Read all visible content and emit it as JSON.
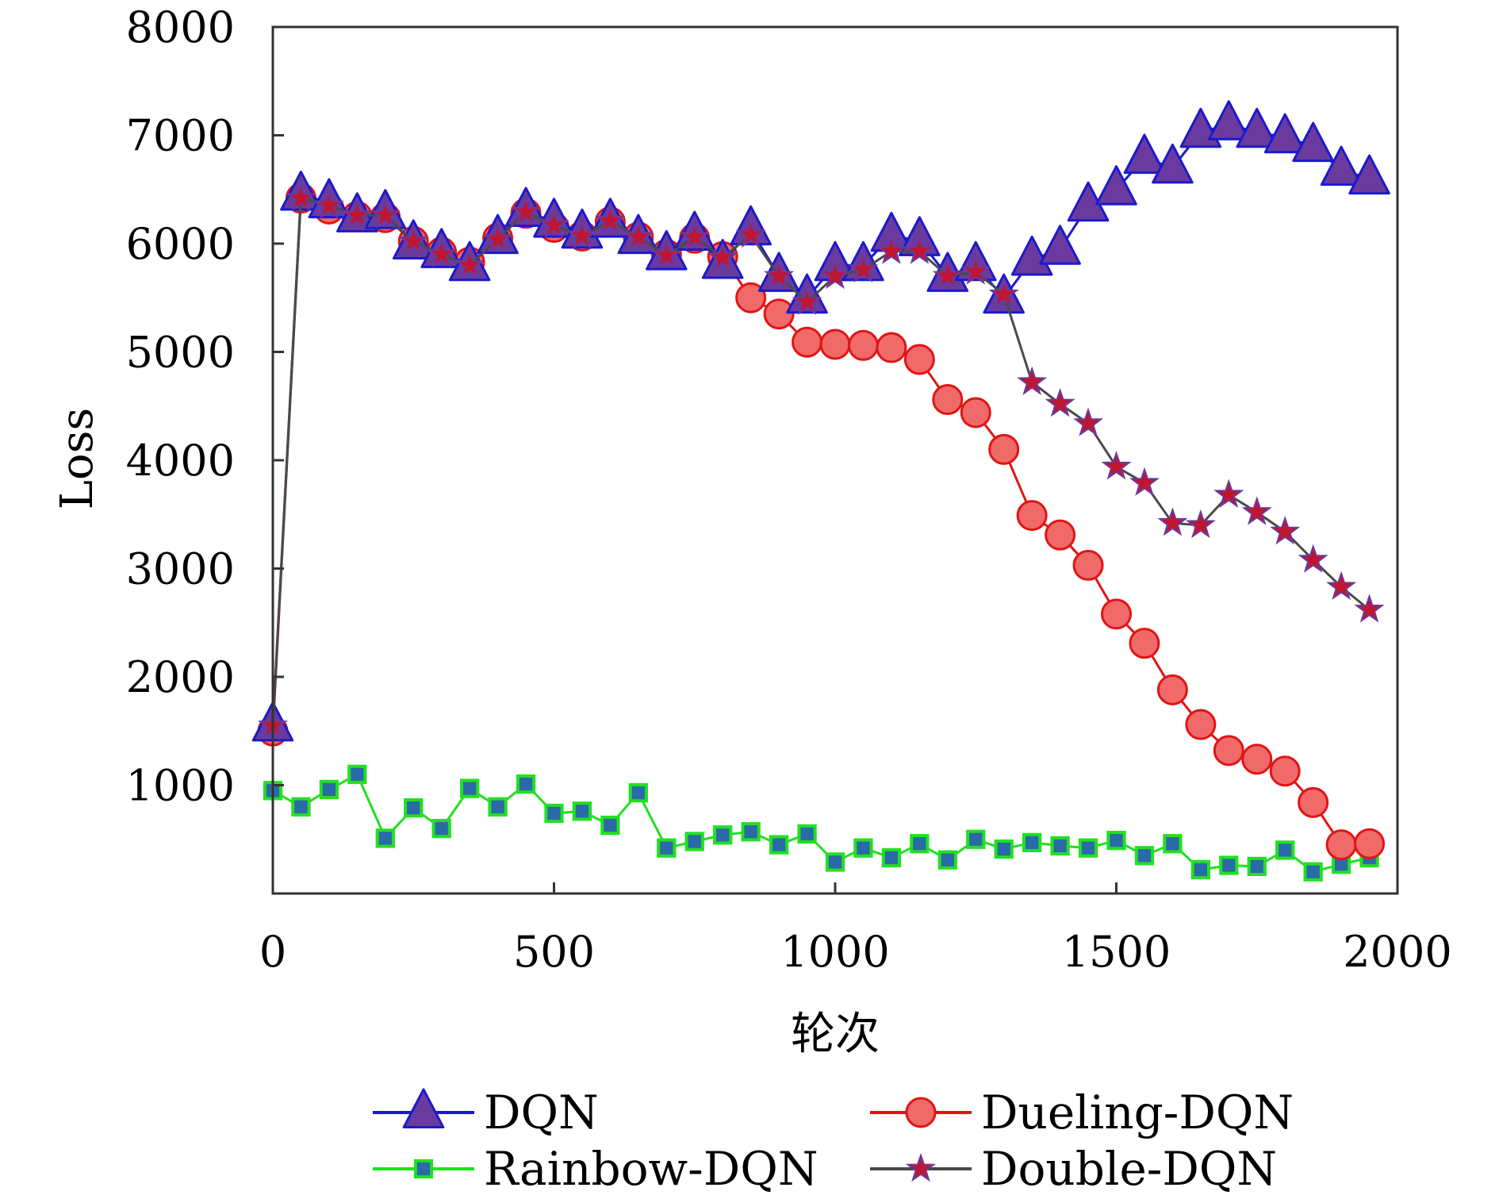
{
  "chart_data": {
    "type": "line",
    "title": "",
    "xlabel": "轮次",
    "ylabel": "Loss",
    "xlim": [
      0,
      2000
    ],
    "ylim": [
      0,
      8000
    ],
    "xticks": [
      "0",
      "500",
      "1000",
      "1500",
      "2000"
    ],
    "yticks": [
      "1000",
      "2000",
      "3000",
      "4000",
      "5000",
      "6000",
      "7000",
      "8000"
    ],
    "grid": false,
    "legend_position": "bottom",
    "x": [
      0,
      50,
      100,
      150,
      200,
      250,
      300,
      350,
      400,
      450,
      500,
      550,
      600,
      650,
      700,
      750,
      800,
      850,
      900,
      950,
      1000,
      1050,
      1100,
      1150,
      1200,
      1250,
      1300,
      1350,
      1400,
      1450,
      1500,
      1550,
      1600,
      1650,
      1700,
      1750,
      1800,
      1850,
      1900,
      1950
    ],
    "series": [
      {
        "name": "DQN",
        "marker": "triangle",
        "line_color": "#1a1acc",
        "marker_fill": "#6a3a9e",
        "marker_edge": "#1a1acc",
        "values": [
          1550,
          6450,
          6380,
          6250,
          6280,
          6000,
          5920,
          5800,
          6050,
          6300,
          6200,
          6100,
          6200,
          6050,
          5900,
          6080,
          5820,
          6130,
          5700,
          5500,
          5800,
          5800,
          6070,
          6030,
          5700,
          5800,
          5500,
          5850,
          5950,
          6350,
          6500,
          6790,
          6700,
          7030,
          7100,
          7030,
          6980,
          6900,
          6680,
          6600
        ]
      },
      {
        "name": "Dueling-DQN",
        "marker": "circle",
        "line_color": "#e01515",
        "marker_fill": "#f06a6a",
        "marker_edge": "#e01515",
        "values": [
          1500,
          6420,
          6320,
          6250,
          6240,
          6020,
          5920,
          5830,
          6050,
          6280,
          6150,
          6070,
          6200,
          6060,
          5900,
          6050,
          5880,
          5500,
          5350,
          5090,
          5070,
          5060,
          5040,
          4930,
          4560,
          4440,
          4100,
          3490,
          3310,
          3030,
          2580,
          2310,
          1880,
          1560,
          1320,
          1240,
          1130,
          840,
          450,
          460
        ]
      },
      {
        "name": "Rainbow-DQN",
        "marker": "square",
        "line_color": "#22e022",
        "marker_fill": "#2a6aa8",
        "marker_edge": "#22e022",
        "values": [
          950,
          800,
          960,
          1100,
          510,
          790,
          600,
          970,
          800,
          1010,
          740,
          760,
          630,
          930,
          420,
          480,
          540,
          570,
          450,
          550,
          290,
          420,
          330,
          460,
          310,
          500,
          410,
          470,
          440,
          420,
          490,
          350,
          460,
          220,
          260,
          250,
          400,
          200,
          270,
          330
        ]
      },
      {
        "name": "Double-DQN",
        "marker": "star",
        "line_color": "#4a4a4a",
        "marker_fill": "#c01530",
        "marker_edge": "#6a3a9e",
        "values": [
          1550,
          6420,
          6350,
          6260,
          6260,
          6020,
          5900,
          5800,
          6040,
          6290,
          6170,
          6070,
          6210,
          6060,
          5890,
          6060,
          5870,
          6080,
          5700,
          5460,
          5700,
          5760,
          5930,
          5930,
          5700,
          5740,
          5530,
          4720,
          4520,
          4340,
          3940,
          3790,
          3420,
          3400,
          3680,
          3520,
          3340,
          3080,
          2830,
          2620
        ]
      }
    ]
  }
}
